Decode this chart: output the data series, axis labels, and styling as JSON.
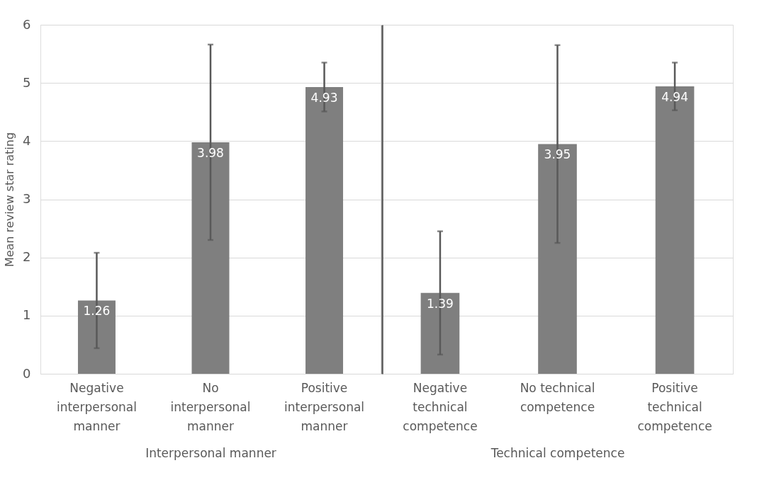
{
  "chart_data": [
    {
      "type": "bar",
      "xlabel": "Interpersonal manner",
      "ylabel": "Mean review star rating",
      "categories": [
        "Negative interpersonal manner",
        "No interpersonal manner",
        "Positive interpersonal manner"
      ],
      "values": [
        1.26,
        3.98,
        4.93
      ],
      "errors": [
        0.82,
        1.68,
        0.42
      ],
      "color": "#7f7f7f",
      "ylim": [
        0,
        6
      ],
      "yticks": [
        0,
        1,
        2,
        3,
        4,
        5,
        6
      ],
      "grid": "y",
      "data_labels": true
    },
    {
      "type": "bar",
      "xlabel": "Technical competence",
      "categories": [
        "Negative technical competence",
        "No technical competence",
        "Positive technical competence"
      ],
      "values": [
        1.39,
        3.95,
        4.94
      ],
      "errors": [
        1.06,
        1.7,
        0.41
      ],
      "color": "#7f7f7f",
      "ylim": [
        0,
        6
      ],
      "yticks": [
        0,
        1,
        2,
        3,
        4,
        5,
        6
      ],
      "grid": "y",
      "data_labels": true,
      "tick_labels": "x"
    }
  ]
}
